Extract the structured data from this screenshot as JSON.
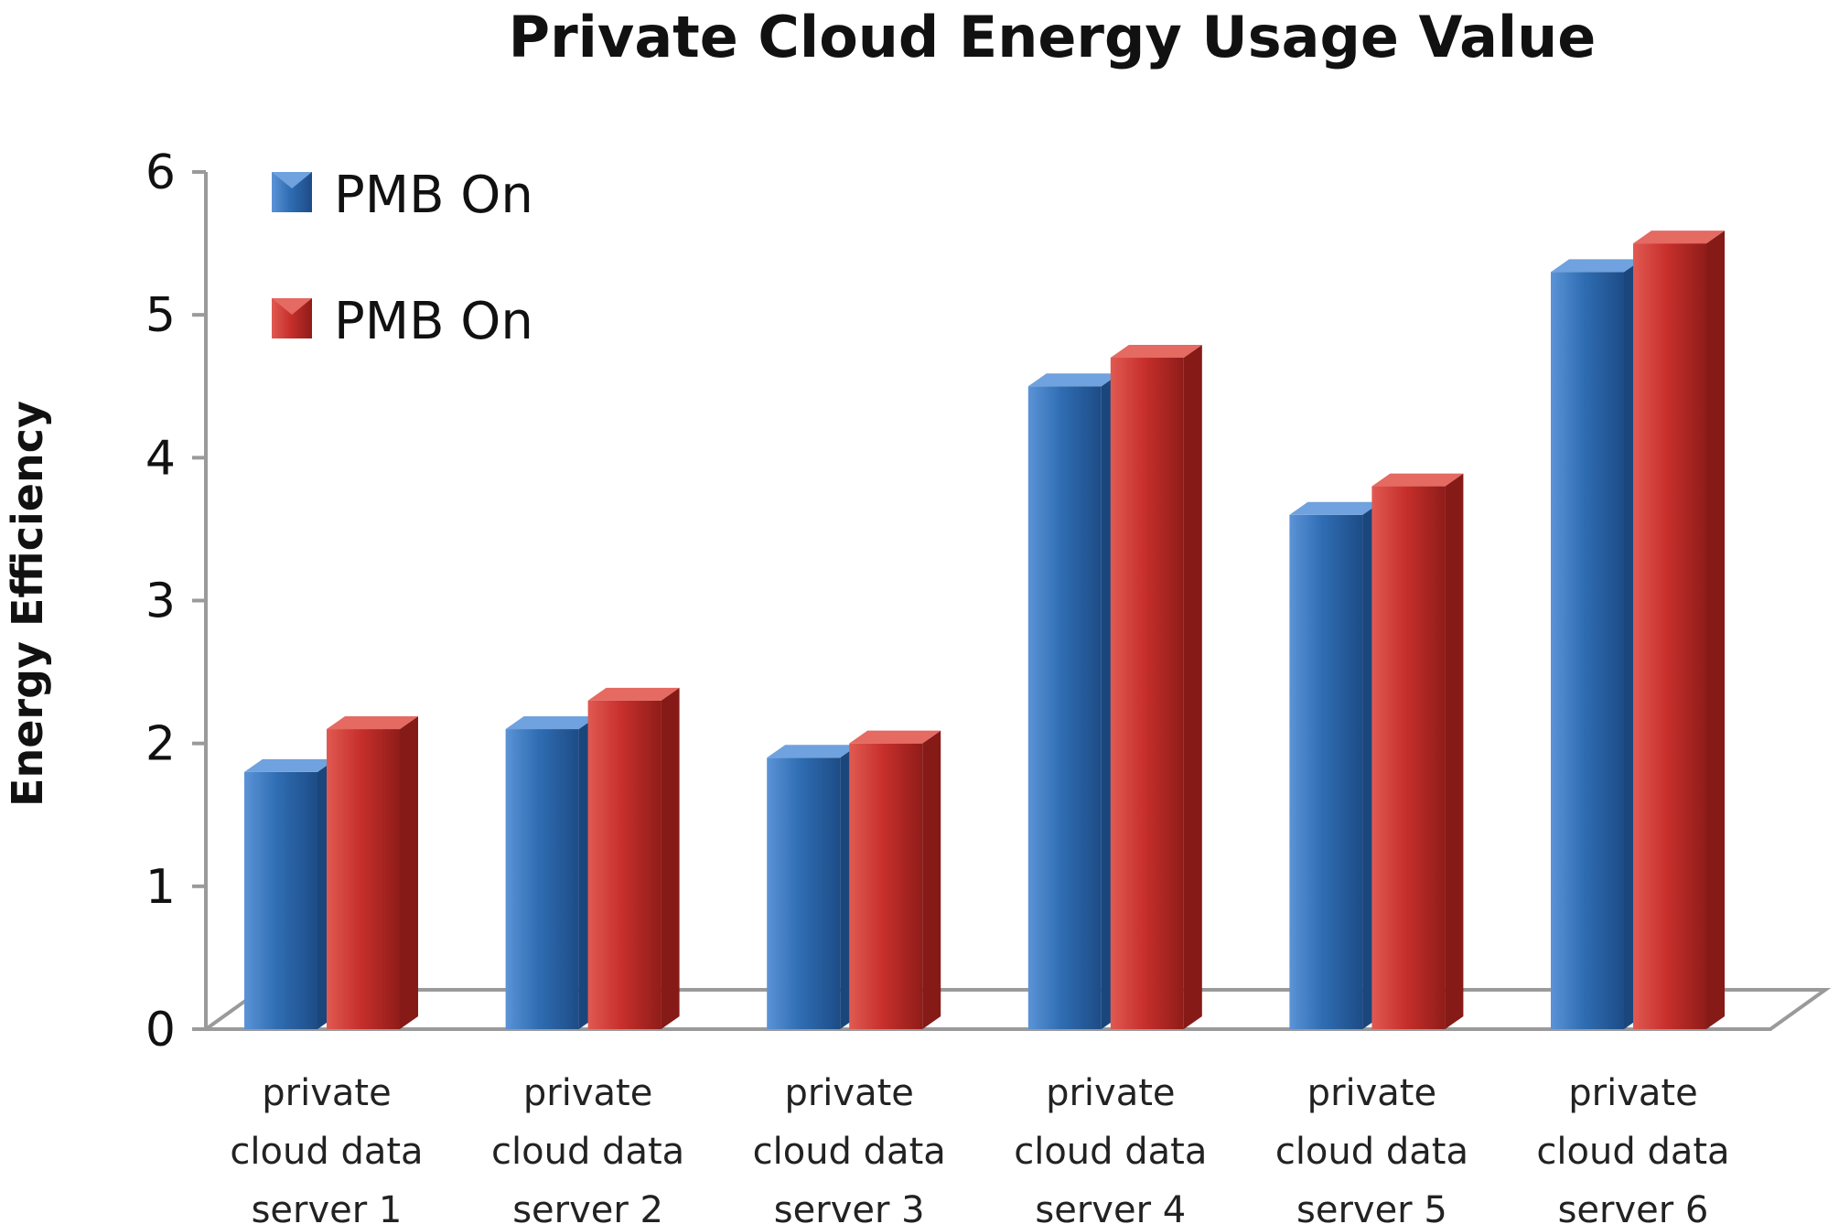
{
  "chart_data": {
    "type": "bar",
    "title": "Private Cloud Energy Usage Value",
    "xlabel": "",
    "ylabel": "Energy Efficiency",
    "ylim": [
      0,
      6
    ],
    "yticks": [
      "0",
      "1",
      "2",
      "3",
      "4",
      "5",
      "6"
    ],
    "grid": false,
    "legend_position": "top-left",
    "categories": [
      [
        "private",
        "cloud data",
        "server 1"
      ],
      [
        "private",
        "cloud data",
        "server 2"
      ],
      [
        "private",
        "cloud data",
        "server 3"
      ],
      [
        "private",
        "cloud data",
        "server 4"
      ],
      [
        "private",
        "cloud data",
        "server 5"
      ],
      [
        "private",
        "cloud data",
        "server 6"
      ]
    ],
    "series": [
      {
        "name": "PMB On",
        "color": "#2f6db3",
        "values": [
          1.8,
          2.1,
          1.9,
          4.5,
          3.6,
          5.3
        ]
      },
      {
        "name": "PMB On",
        "color": "#c8302c",
        "values": [
          2.1,
          2.3,
          2.0,
          4.7,
          3.8,
          5.5
        ]
      }
    ]
  }
}
